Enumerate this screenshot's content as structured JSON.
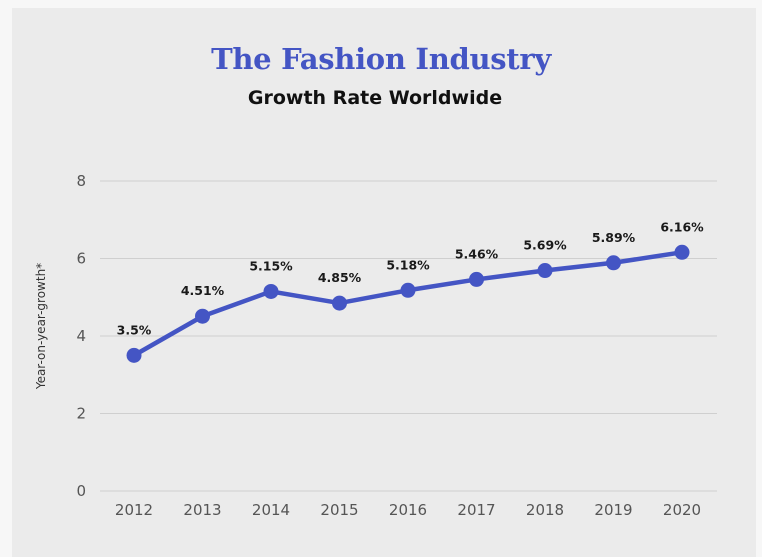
{
  "chart_data": {
    "type": "line",
    "title": "The Fashion Industry",
    "subtitle": "Growth Rate Worldwide",
    "xlabel": "",
    "ylabel": "Year-on-year-growth*",
    "ylim": [
      0,
      8
    ],
    "yticks": [
      0,
      2,
      4,
      6,
      8
    ],
    "categories": [
      "2012",
      "2013",
      "2014",
      "2015",
      "2016",
      "2017",
      "2018",
      "2019",
      "2020"
    ],
    "series": [
      {
        "values": [
          3.5,
          4.51,
          5.15,
          4.85,
          5.18,
          5.46,
          5.69,
          5.89,
          6.16
        ],
        "labels": [
          "3.5%",
          "4.51%",
          "5.15%",
          "4.85%",
          "5.18%",
          "5.46%",
          "5.69%",
          "5.89%",
          "6.16%"
        ],
        "color": "#4455c4"
      }
    ],
    "grid": true,
    "legend": "none"
  },
  "colors": {
    "title": "#4455c4",
    "line": "#4455c4",
    "background": "#ebebeb"
  }
}
